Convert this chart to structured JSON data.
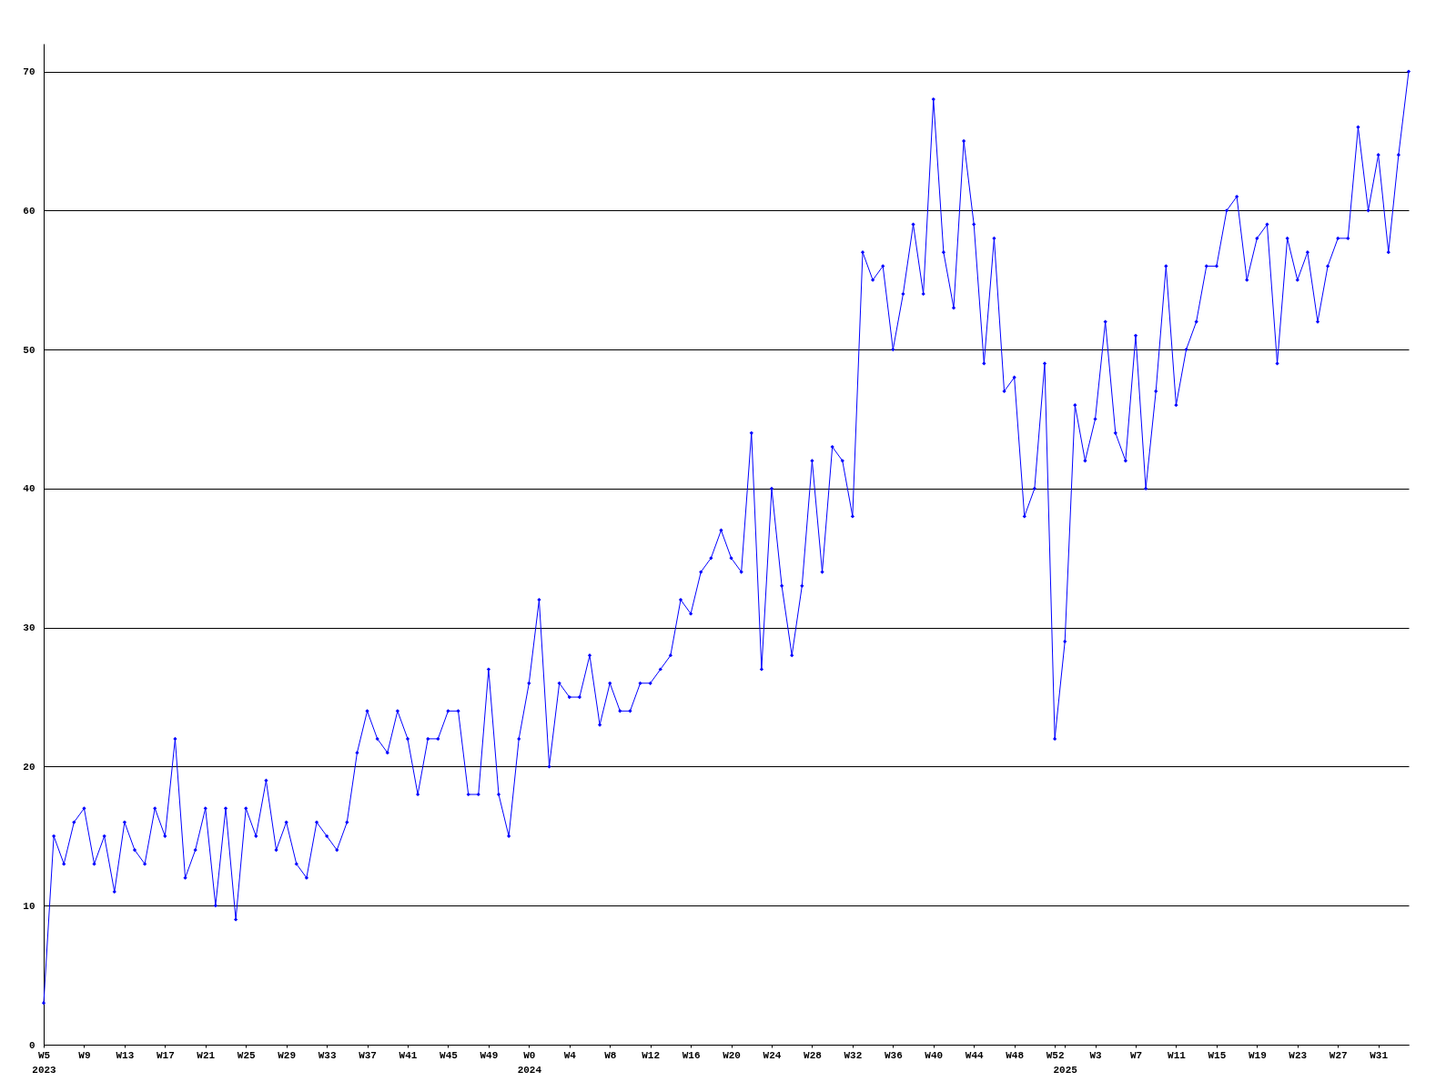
{
  "chart_data": {
    "type": "line",
    "categories": [
      "W5\n2023",
      null,
      null,
      null,
      "W9",
      null,
      null,
      null,
      "W13",
      null,
      null,
      null,
      "W17",
      null,
      null,
      null,
      "W21",
      null,
      null,
      null,
      "W25",
      null,
      null,
      null,
      "W29",
      null,
      null,
      null,
      "W33",
      null,
      null,
      null,
      "W37",
      null,
      null,
      null,
      "W41",
      null,
      null,
      null,
      "W45",
      null,
      null,
      null,
      "W49",
      null,
      null,
      null,
      "W0\n2024",
      null,
      null,
      null,
      "W4",
      null,
      null,
      null,
      "W8",
      null,
      null,
      null,
      "W12",
      null,
      null,
      null,
      "W16",
      null,
      null,
      null,
      "W20",
      null,
      null,
      null,
      "W24",
      null,
      null,
      null,
      "W28",
      null,
      null,
      null,
      "W32",
      null,
      null,
      null,
      "W36",
      null,
      null,
      null,
      "W40",
      null,
      null,
      null,
      "W44",
      null,
      null,
      null,
      "W48",
      null,
      null,
      null,
      "W52",
      "\n2025",
      null,
      null,
      "W3",
      null,
      null,
      null,
      "W7",
      null,
      null,
      null,
      "W11",
      null,
      null,
      null,
      "W15",
      null,
      null,
      null,
      "W19",
      null,
      null,
      null,
      "W23",
      null,
      null,
      null,
      "W27",
      null,
      null,
      null,
      "W31",
      null,
      null,
      null
    ],
    "series": [
      {
        "color": "#0000ff",
        "values": [
          3,
          15,
          13,
          16,
          17,
          13,
          15,
          11,
          16,
          14,
          13,
          17,
          15,
          22,
          12,
          14,
          17,
          10,
          17,
          9,
          17,
          15,
          19,
          14,
          16,
          13,
          12,
          16,
          15,
          14,
          16,
          21,
          24,
          22,
          21,
          24,
          22,
          18,
          22,
          22,
          24,
          24,
          18,
          18,
          27,
          18,
          15,
          22,
          26,
          32,
          20,
          26,
          25,
          25,
          28,
          23,
          26,
          24,
          24,
          26,
          26,
          27,
          28,
          32,
          31,
          34,
          35,
          37,
          35,
          34,
          44,
          27,
          40,
          33,
          28,
          33,
          42,
          34,
          43,
          42,
          38,
          57,
          55,
          56,
          50,
          54,
          59,
          54,
          68,
          57,
          53,
          65,
          59,
          49,
          58,
          47,
          48,
          38,
          40,
          49,
          22,
          29,
          46,
          42,
          45,
          52,
          44,
          42,
          51,
          40,
          47,
          56,
          46,
          50,
          52,
          56,
          56,
          60,
          61,
          55,
          58,
          59,
          49,
          58,
          55,
          57,
          52,
          56,
          58,
          58,
          66,
          60,
          64,
          57,
          64,
          70
        ]
      }
    ],
    "ylim": [
      0,
      72
    ],
    "yticks": [
      0,
      10,
      20,
      30,
      40,
      50,
      60,
      70
    ],
    "grid": "y",
    "marker": "diamond",
    "line_style": "solid"
  }
}
